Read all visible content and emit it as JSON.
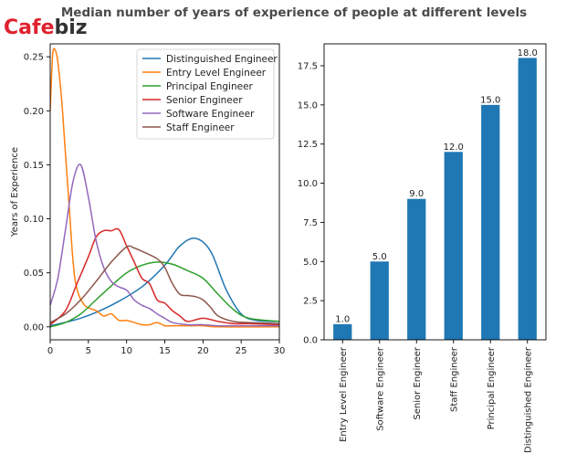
{
  "title": "Median number of years of experience of people at different levels",
  "logo": {
    "left": "Cafe",
    "right": "biz",
    "left_color": "#e0212e",
    "right_color": "#333333"
  },
  "chart_data": [
    {
      "type": "line",
      "subtype": "density",
      "ylabel": "Years of Experience",
      "xlabel": "",
      "xlim": [
        0,
        30
      ],
      "ylim": [
        -0.012,
        0.262
      ],
      "xticks": [
        0,
        5,
        10,
        15,
        20,
        25,
        30
      ],
      "yticks": [
        0.0,
        0.05,
        0.1,
        0.15,
        0.2,
        0.25
      ],
      "ytick_labels": [
        "0.00",
        "0.05",
        "0.10",
        "0.15",
        "0.20",
        "0.25"
      ],
      "legend_position": "top-right",
      "series": [
        {
          "name": "Distinguished Engineer",
          "color": "#1f77b4",
          "points": [
            [
              0,
              0.001
            ],
            [
              4,
              0.008
            ],
            [
              8,
              0.02
            ],
            [
              12,
              0.037
            ],
            [
              15,
              0.057
            ],
            [
              17,
              0.075
            ],
            [
              19,
              0.082
            ],
            [
              21,
              0.07
            ],
            [
              23,
              0.035
            ],
            [
              25,
              0.012
            ],
            [
              27,
              0.006
            ],
            [
              30,
              0.005
            ]
          ]
        },
        {
          "name": "Entry Level Engineer",
          "color": "#ff7f0e",
          "points": [
            [
              0,
              0.2
            ],
            [
              0.3,
              0.25
            ],
            [
              0.6,
              0.257
            ],
            [
              1,
              0.245
            ],
            [
              1.5,
              0.21
            ],
            [
              2,
              0.16
            ],
            [
              2.5,
              0.11
            ],
            [
              3,
              0.06
            ],
            [
              3.5,
              0.035
            ],
            [
              4.5,
              0.02
            ],
            [
              6,
              0.015
            ],
            [
              7,
              0.01
            ],
            [
              8,
              0.012
            ],
            [
              9,
              0.006
            ],
            [
              10,
              0.006
            ],
            [
              11,
              0.004
            ],
            [
              12,
              0.002
            ],
            [
              13,
              0.002
            ],
            [
              14,
              0.004
            ],
            [
              15,
              0.001
            ],
            [
              16,
              0.001
            ],
            [
              18,
              0.001
            ],
            [
              20,
              0.001
            ],
            [
              22,
              0.0
            ],
            [
              30,
              0.0
            ]
          ]
        },
        {
          "name": "Principal Engineer",
          "color": "#2ca02c",
          "points": [
            [
              0,
              0.0
            ],
            [
              2,
              0.004
            ],
            [
              4,
              0.012
            ],
            [
              6,
              0.025
            ],
            [
              8,
              0.038
            ],
            [
              10,
              0.05
            ],
            [
              12,
              0.057
            ],
            [
              14,
              0.06
            ],
            [
              16,
              0.058
            ],
            [
              18,
              0.052
            ],
            [
              20,
              0.045
            ],
            [
              22,
              0.03
            ],
            [
              24,
              0.016
            ],
            [
              26,
              0.008
            ],
            [
              30,
              0.005
            ]
          ]
        },
        {
          "name": "Senior Engineer",
          "color": "#d62728",
          "points": [
            [
              0,
              0.002
            ],
            [
              2,
              0.015
            ],
            [
              3.5,
              0.04
            ],
            [
              5,
              0.065
            ],
            [
              6,
              0.083
            ],
            [
              7,
              0.089
            ],
            [
              8,
              0.089
            ],
            [
              9,
              0.09
            ],
            [
              10,
              0.075
            ],
            [
              11,
              0.06
            ],
            [
              12,
              0.045
            ],
            [
              13,
              0.04
            ],
            [
              14,
              0.025
            ],
            [
              15,
              0.022
            ],
            [
              16,
              0.015
            ],
            [
              17,
              0.01
            ],
            [
              18,
              0.005
            ],
            [
              20,
              0.008
            ],
            [
              22,
              0.005
            ],
            [
              24,
              0.003
            ],
            [
              26,
              0.003
            ],
            [
              30,
              0.002
            ]
          ]
        },
        {
          "name": "Software Engineer",
          "color": "#9467bd",
          "points": [
            [
              0,
              0.02
            ],
            [
              1,
              0.045
            ],
            [
              2,
              0.09
            ],
            [
              3,
              0.135
            ],
            [
              4,
              0.15
            ],
            [
              5,
              0.12
            ],
            [
              6,
              0.08
            ],
            [
              7,
              0.055
            ],
            [
              8,
              0.042
            ],
            [
              9,
              0.037
            ],
            [
              10,
              0.034
            ],
            [
              11,
              0.025
            ],
            [
              12,
              0.02
            ],
            [
              13,
              0.017
            ],
            [
              14,
              0.012
            ],
            [
              15,
              0.008
            ],
            [
              16,
              0.004
            ],
            [
              18,
              0.002
            ],
            [
              20,
              0.002
            ],
            [
              22,
              0.001
            ],
            [
              25,
              0.001
            ],
            [
              30,
              0.001
            ]
          ]
        },
        {
          "name": "Staff Engineer",
          "color": "#8c564b",
          "points": [
            [
              0,
              0.004
            ],
            [
              2,
              0.012
            ],
            [
              4,
              0.025
            ],
            [
              6,
              0.042
            ],
            [
              8,
              0.06
            ],
            [
              10,
              0.074
            ],
            [
              11,
              0.073
            ],
            [
              12,
              0.07
            ],
            [
              14,
              0.063
            ],
            [
              15,
              0.055
            ],
            [
              16,
              0.04
            ],
            [
              17,
              0.03
            ],
            [
              18,
              0.029
            ],
            [
              19,
              0.028
            ],
            [
              20,
              0.025
            ],
            [
              21,
              0.018
            ],
            [
              22,
              0.01
            ],
            [
              24,
              0.005
            ],
            [
              26,
              0.004
            ],
            [
              30,
              0.003
            ]
          ]
        }
      ]
    },
    {
      "type": "bar",
      "categories": [
        "Entry Level Engineer",
        "Software Engineer",
        "Senior Engineer",
        "Staff Engineer",
        "Principal Engineer",
        "Distinguished Engineer"
      ],
      "values": [
        1.0,
        5.0,
        9.0,
        12.0,
        15.0,
        18.0
      ],
      "value_labels": [
        "1.0",
        "5.0",
        "9.0",
        "12.0",
        "15.0",
        "18.0"
      ],
      "color": "#1f77b4",
      "ylim": [
        0,
        18.9
      ],
      "yticks": [
        0,
        2.5,
        5,
        7.5,
        10,
        12.5,
        15,
        17.5
      ],
      "ytick_labels": [
        "0.0",
        "2.5",
        "5.0",
        "7.5",
        "10.0",
        "12.5",
        "15.0",
        "17.5"
      ],
      "xlabel": "",
      "ylabel": ""
    }
  ]
}
